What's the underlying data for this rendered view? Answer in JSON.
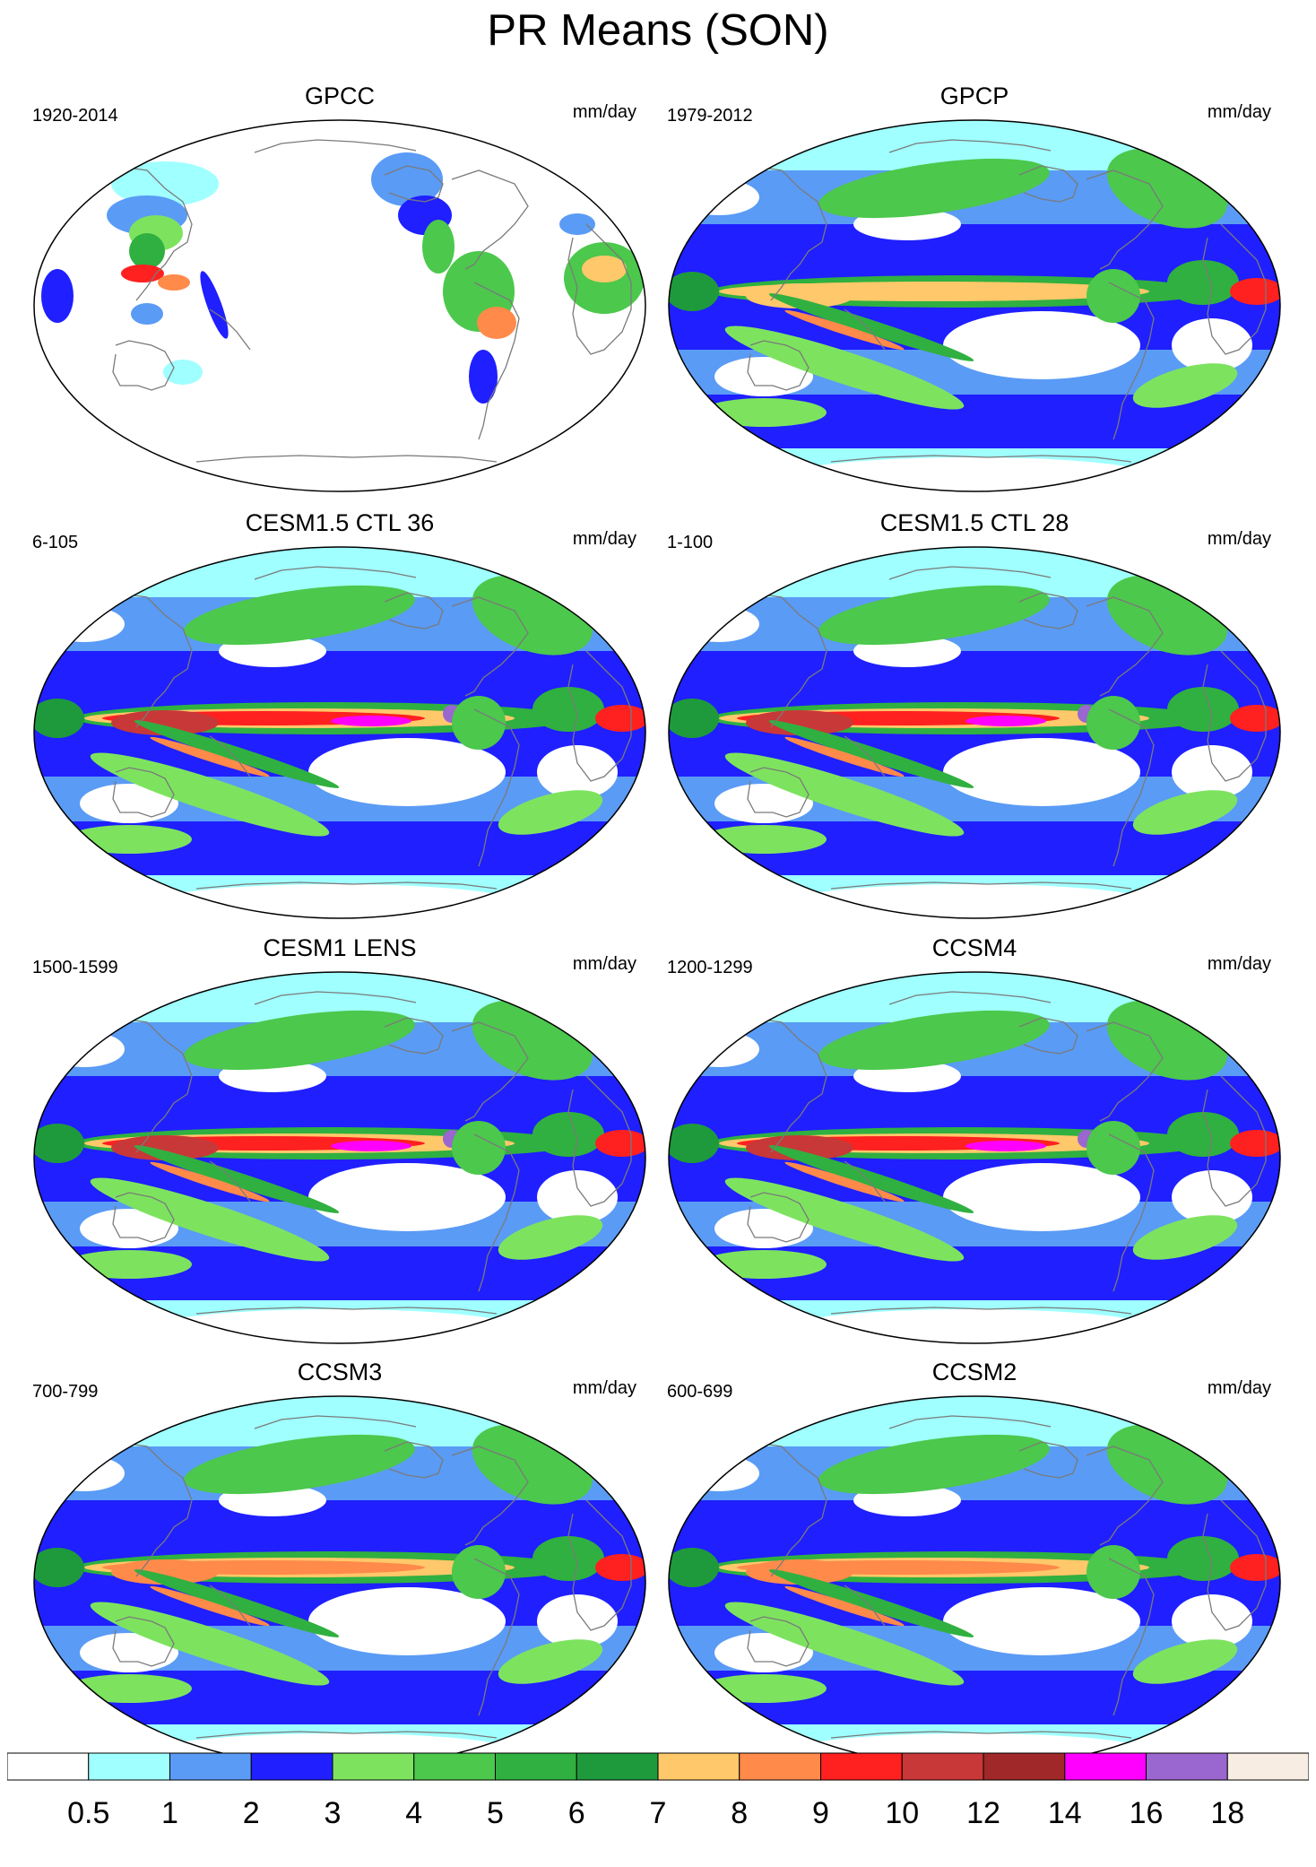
{
  "figure": {
    "title": "PR Means (SON)"
  },
  "panels": [
    {
      "title": "GPCC",
      "period": "1920-2014",
      "units": "mm/day",
      "kind": "obs_land"
    },
    {
      "title": "GPCP",
      "period": "1979-2012",
      "units": "mm/day",
      "kind": "obs_global"
    },
    {
      "title": "CESM1.5 CTL 36",
      "period": "6-105",
      "units": "mm/day",
      "kind": "model_strong"
    },
    {
      "title": "CESM1.5 CTL 28",
      "period": "1-100",
      "units": "mm/day",
      "kind": "model_strong"
    },
    {
      "title": "CESM1 LENS",
      "period": "1500-1599",
      "units": "mm/day",
      "kind": "model_strong"
    },
    {
      "title": "CCSM4",
      "period": "1200-1299",
      "units": "mm/day",
      "kind": "model_strong"
    },
    {
      "title": "CCSM3",
      "period": "700-799",
      "units": "mm/day",
      "kind": "model_medium"
    },
    {
      "title": "CCSM2",
      "period": "600-699",
      "units": "mm/day",
      "kind": "model_medium"
    }
  ],
  "colorbar": {
    "labels": [
      "0.5",
      "1",
      "2",
      "3",
      "4",
      "5",
      "6",
      "7",
      "8",
      "9",
      "10",
      "12",
      "14",
      "16",
      "18"
    ],
    "colors": [
      "#ffffff",
      "#a0ffff",
      "#5a9bf5",
      "#1f1fff",
      "#7de35f",
      "#4cc84c",
      "#30b040",
      "#1e9a3c",
      "#ffc86a",
      "#ff8a4a",
      "#ff2020",
      "#c83838",
      "#a02828",
      "#ff00ff",
      "#9a66d0",
      "#f8ede2"
    ]
  },
  "style": {
    "ocean_white": "#ffffff",
    "coast_color": "#7a7a7a",
    "frame_color": "#000000"
  }
}
